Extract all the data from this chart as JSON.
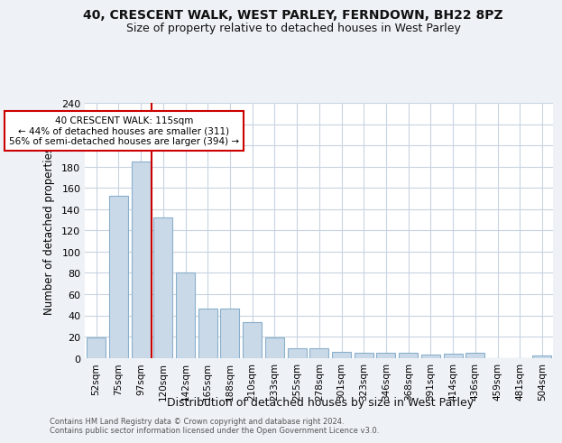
{
  "title_line1": "40, CRESCENT WALK, WEST PARLEY, FERNDOWN, BH22 8PZ",
  "title_line2": "Size of property relative to detached houses in West Parley",
  "xlabel": "Distribution of detached houses by size in West Parley",
  "ylabel": "Number of detached properties",
  "categories": [
    "52sqm",
    "75sqm",
    "97sqm",
    "120sqm",
    "142sqm",
    "165sqm",
    "188sqm",
    "210sqm",
    "233sqm",
    "255sqm",
    "278sqm",
    "301sqm",
    "323sqm",
    "346sqm",
    "368sqm",
    "391sqm",
    "414sqm",
    "436sqm",
    "459sqm",
    "481sqm",
    "504sqm"
  ],
  "values": [
    19,
    153,
    185,
    132,
    80,
    46,
    46,
    34,
    19,
    9,
    9,
    6,
    5,
    5,
    5,
    3,
    4,
    5,
    0,
    0,
    2
  ],
  "bar_color": "#c9d9e8",
  "bar_edge_color": "#8ab0cc",
  "vline_x": 2.5,
  "vline_color": "#cc0000",
  "annotation_text": "40 CRESCENT WALK: 115sqm\n← 44% of detached houses are smaller (311)\n56% of semi-detached houses are larger (394) →",
  "annotation_box_color": "#ffffff",
  "annotation_box_edge": "#cc0000",
  "ylim": [
    0,
    240
  ],
  "yticks": [
    0,
    20,
    40,
    60,
    80,
    100,
    120,
    140,
    160,
    180,
    200,
    220,
    240
  ],
  "grid_color": "#c8d4e0",
  "footer_text": "Contains HM Land Registry data © Crown copyright and database right 2024.\nContains public sector information licensed under the Open Government Licence v3.0.",
  "bg_color": "#eef2f7",
  "plot_bg_color": "#ffffff"
}
